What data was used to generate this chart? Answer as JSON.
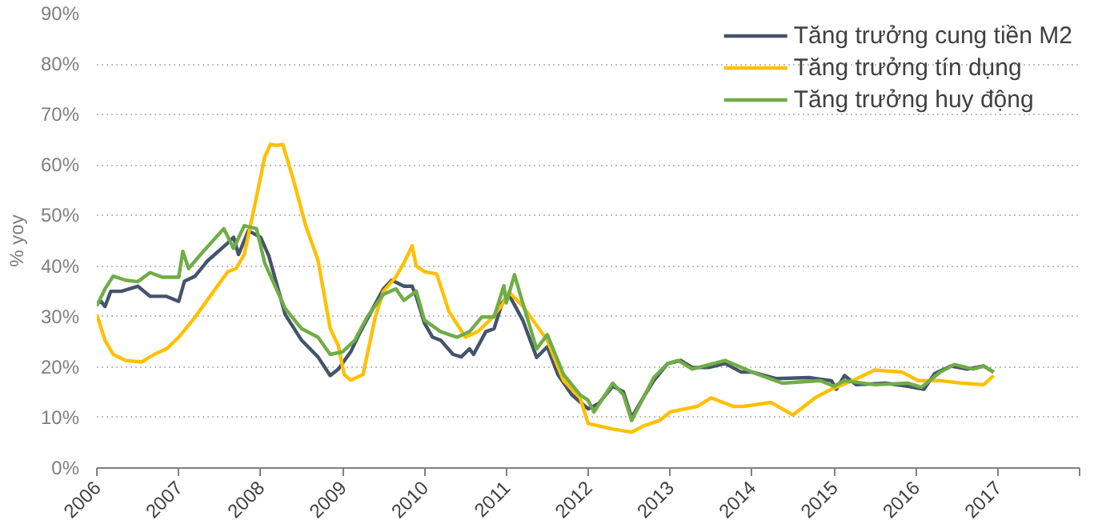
{
  "chart_data": {
    "type": "line",
    "ylabel": "% yoy",
    "legend": "top right",
    "grid": "y",
    "line_style": "solid",
    "marker": "none",
    "xlim": [
      2006,
      2018
    ],
    "xticks": [
      2006,
      2007,
      2008,
      2009,
      2010,
      2011,
      2012,
      2013,
      2014,
      2015,
      2016,
      2017,
      {
        "value": 2018,
        "label": null
      }
    ],
    "ylim": [
      0,
      90
    ],
    "yticks": [
      {
        "value": 0,
        "label": "0%"
      },
      {
        "value": 10,
        "label": "10%"
      },
      {
        "value": 20,
        "label": "20%"
      },
      {
        "value": 30,
        "label": "30%"
      },
      {
        "value": 40,
        "label": "40%"
      },
      {
        "value": 50,
        "label": "50%"
      },
      {
        "value": 60,
        "label": "60%"
      },
      {
        "value": 70,
        "label": "70%"
      },
      {
        "value": 80,
        "label": "80%"
      },
      {
        "value": 90,
        "label": "90%"
      }
    ],
    "series": [
      {
        "name": "Tăng trưởng cung tiền M2",
        "color": "#44546a",
        "x": [
          2006.0,
          2006.05,
          2006.1,
          2006.17,
          2006.3,
          2006.5,
          2006.65,
          2006.85,
          2007.0,
          2007.07,
          2007.2,
          2007.35,
          2007.6,
          2007.67,
          2007.73,
          2007.85,
          2008.0,
          2008.1,
          2008.3,
          2008.5,
          2008.7,
          2008.85,
          2008.95,
          2009.1,
          2009.2,
          2009.35,
          2009.5,
          2009.6,
          2009.75,
          2009.85,
          2009.9,
          2010.0,
          2010.1,
          2010.2,
          2010.35,
          2010.45,
          2010.55,
          2010.6,
          2010.75,
          2010.85,
          2010.95,
          2011.03,
          2011.2,
          2011.37,
          2011.5,
          2011.63,
          2011.8,
          2012.0,
          2012.13,
          2012.3,
          2012.43,
          2012.53,
          2012.67,
          2012.8,
          2012.97,
          2013.13,
          2013.27,
          2013.47,
          2013.67,
          2013.87,
          2014.0,
          2014.3,
          2014.7,
          2014.97,
          2015.03,
          2015.13,
          2015.27,
          2015.63,
          2015.9,
          2016.1,
          2016.23,
          2016.43,
          2016.63,
          2016.83,
          2016.95
        ],
        "values": [
          32.7,
          33,
          32,
          35,
          35,
          36,
          34,
          34,
          33,
          37,
          38,
          41,
          44.6,
          45.7,
          42.3,
          47,
          45.7,
          42,
          30.4,
          25.3,
          22,
          18.3,
          19.6,
          23,
          26.4,
          31,
          35.5,
          37.2,
          36,
          36,
          34,
          28.7,
          25.9,
          25.3,
          22.5,
          22,
          23.6,
          22.5,
          27,
          27.6,
          32.7,
          34.4,
          29.3,
          21.9,
          24,
          18.5,
          14.5,
          11.7,
          12.8,
          16.2,
          15.1,
          10,
          13.9,
          17.3,
          20.7,
          21.3,
          19.9,
          19.9,
          20.7,
          19,
          19,
          17.7,
          17.9,
          17.3,
          15.6,
          18.3,
          16.5,
          16.8,
          16.2,
          15.6,
          18.7,
          20.2,
          19.6,
          20.2,
          19
        ]
      },
      {
        "name": "Tăng trưởng tín dụng",
        "color": "#ffc000",
        "x": [
          2006.0,
          2006.1,
          2006.2,
          2006.35,
          2006.55,
          2006.7,
          2006.85,
          2007.0,
          2007.2,
          2007.4,
          2007.6,
          2007.7,
          2007.8,
          2007.95,
          2008.05,
          2008.12,
          2008.2,
          2008.27,
          2008.4,
          2008.55,
          2008.7,
          2008.85,
          2008.95,
          2009.02,
          2009.1,
          2009.25,
          2009.4,
          2009.5,
          2009.65,
          2009.75,
          2009.85,
          2009.9,
          2010.0,
          2010.15,
          2010.3,
          2010.5,
          2010.65,
          2010.8,
          2010.95,
          2011.03,
          2011.2,
          2011.5,
          2011.7,
          2011.9,
          2012.0,
          2012.3,
          2012.53,
          2012.67,
          2012.87,
          2013.0,
          2013.33,
          2013.5,
          2013.77,
          2013.9,
          2014.23,
          2014.5,
          2014.77,
          2014.97,
          2015.23,
          2015.5,
          2015.83,
          2016.03,
          2016.3,
          2016.57,
          2016.83,
          2016.95
        ],
        "values": [
          30.4,
          25.3,
          22.5,
          21.3,
          21,
          22.5,
          23.6,
          25.9,
          29.9,
          34.4,
          38.9,
          39.5,
          42.3,
          53.7,
          61.6,
          64.1,
          63.9,
          64.1,
          57.1,
          48,
          41.2,
          27.6,
          24.2,
          18.5,
          17.4,
          18.5,
          29.9,
          35,
          37.8,
          40.6,
          44,
          40,
          38.9,
          38.4,
          31,
          25.9,
          27,
          29.3,
          32.3,
          34.9,
          32.1,
          25.3,
          17.3,
          13.9,
          8.8,
          7.7,
          7.1,
          8.3,
          9.4,
          11.1,
          12.2,
          13.9,
          12.2,
          12.2,
          13,
          10.5,
          13.9,
          15.6,
          17.3,
          19.4,
          19,
          17.3,
          17.3,
          16.8,
          16.5,
          18.3
        ]
      },
      {
        "name": "Tăng trưởng huy động",
        "color": "#70ad47",
        "x": [
          2006.0,
          2006.1,
          2006.2,
          2006.35,
          2006.5,
          2006.65,
          2006.8,
          2007.0,
          2007.05,
          2007.12,
          2007.3,
          2007.55,
          2007.67,
          2007.8,
          2007.95,
          2008.05,
          2008.3,
          2008.5,
          2008.7,
          2008.85,
          2009.0,
          2009.15,
          2009.3,
          2009.5,
          2009.65,
          2009.75,
          2009.9,
          2010.0,
          2010.2,
          2010.4,
          2010.55,
          2010.7,
          2010.85,
          2010.97,
          2011.0,
          2011.1,
          2011.2,
          2011.37,
          2011.5,
          2011.7,
          2011.9,
          2012.0,
          2012.07,
          2012.3,
          2012.43,
          2012.53,
          2012.8,
          2012.97,
          2013.1,
          2013.27,
          2013.67,
          2014.0,
          2014.37,
          2014.83,
          2015.0,
          2015.13,
          2015.5,
          2015.9,
          2016.07,
          2016.3,
          2016.47,
          2016.7,
          2016.83,
          2016.95
        ],
        "values": [
          32.1,
          35.5,
          38,
          37.2,
          36.9,
          38.7,
          37.8,
          37.8,
          42.9,
          39.5,
          42.9,
          47.4,
          43.5,
          48,
          47.4,
          40.6,
          31.6,
          27.6,
          25.9,
          22.5,
          23,
          25.3,
          29.9,
          34.4,
          35.5,
          33.2,
          35,
          29.3,
          27,
          25.9,
          27,
          29.9,
          29.9,
          36.1,
          32.7,
          38.3,
          32.7,
          23.6,
          26.4,
          18.5,
          14.5,
          13.4,
          11.1,
          16.8,
          14.5,
          9.4,
          17.9,
          20.7,
          21.3,
          19.6,
          21.3,
          19,
          16.8,
          17.3,
          16.2,
          17.3,
          16.5,
          16.8,
          16,
          19,
          20.5,
          19.6,
          20.2,
          19
        ]
      }
    ]
  }
}
